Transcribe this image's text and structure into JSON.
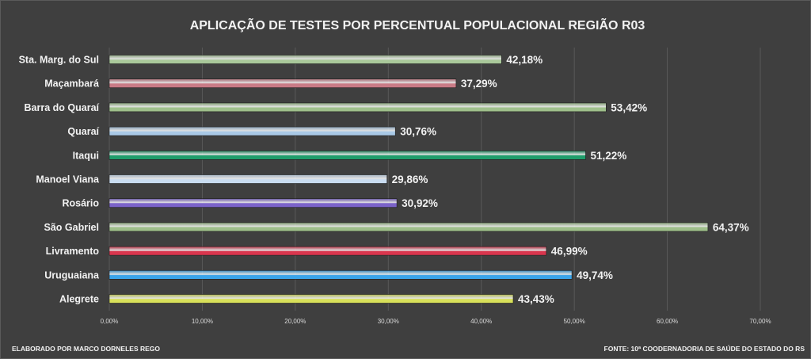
{
  "chart_data": {
    "type": "bar",
    "orientation": "horizontal",
    "title": "APLICAÇÃO DE TESTES POR PERCENTUAL POPULACIONAL REGIÃO R03",
    "xlabel": "",
    "ylabel": "",
    "xlim": [
      0,
      70
    ],
    "tick_labels": [
      "0,00%",
      "10,00%",
      "20,00%",
      "30,00%",
      "40,00%",
      "50,00%",
      "60,00%",
      "70,00%"
    ],
    "grid": true,
    "legend": "none",
    "categories": [
      "Sta. Marg. do Sul",
      "Maçambará",
      "Barra do Quaraí",
      "Quaraí",
      "Itaqui",
      "Manoel Viana",
      "Rosário",
      "São Gabriel",
      "Livramento",
      "Uruguaiana",
      "Alegrete"
    ],
    "values": [
      42.18,
      37.29,
      53.42,
      30.76,
      51.22,
      29.86,
      30.92,
      64.37,
      46.99,
      49.74,
      43.43
    ],
    "value_labels": [
      "42,18%",
      "37,29%",
      "53,42%",
      "30,76%",
      "51,22%",
      "29,86%",
      "30,92%",
      "64,37%",
      "46,99%",
      "49,74%",
      "43,43%"
    ],
    "colors": [
      "#a9c89a",
      "#c97b86",
      "#9fc08c",
      "#a9c9e6",
      "#1f9d6b",
      "#c9dcf0",
      "#7b63c9",
      "#9ebf8a",
      "#d9364e",
      "#3aa4ea",
      "#d8e05a"
    ]
  },
  "footer": {
    "left": "ELABORADO POR MARCO DORNELES REGO",
    "right": "FONTE: 10ª COODERNADORIA  DE SAÚDE DO ESTADO DO RS"
  },
  "colors": {
    "background": "#3f3f3f",
    "gridline": "#595959",
    "text": "#f2f2f2"
  }
}
